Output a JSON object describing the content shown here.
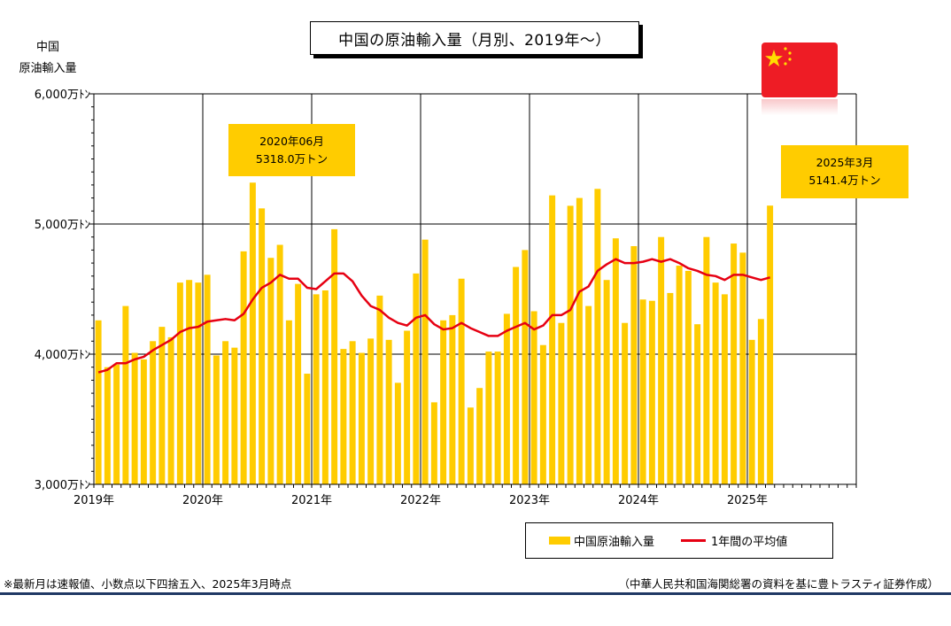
{
  "title": "中国の原油輸入量（月別、2019年～）",
  "y_axis_unit_line1": "中国",
  "y_axis_unit_line2": "原油輸入量",
  "callouts": [
    {
      "line1": "2020年06月",
      "line2": "5318.0万トン"
    },
    {
      "line1": "2025年3月",
      "line2": "5141.4万トン"
    }
  ],
  "legend": {
    "bar_label": "中国原油輸入量",
    "line_label": "1年間の平均値"
  },
  "footnote_left": "※最新月は速報値、小数点以下四捨五入、2025年3月時点",
  "footnote_right": "（中華人民共和国海関総署の資料を基に豊トラスティ証券作成）",
  "colors": {
    "bar": "#ffcc00",
    "line": "#e60012",
    "callout": "#ffcc00",
    "flag_red": "#ee1c25",
    "flag_star": "#ffde00"
  },
  "chart_data": {
    "type": "bar",
    "ylim": [
      3000,
      6000
    ],
    "y_ticks": [
      {
        "value": 3000,
        "label": "3,000万ﾄﾝ"
      },
      {
        "value": 4000,
        "label": "4,000万ﾄﾝ"
      },
      {
        "value": 5000,
        "label": "5,000万ﾄﾝ"
      },
      {
        "value": 6000,
        "label": "6,000万ﾄﾝ"
      }
    ],
    "x_year_labels": [
      "2019年",
      "2020年",
      "2021年",
      "2022年",
      "2023年",
      "2024年",
      "2025年"
    ],
    "months_shown": 84,
    "series": [
      {
        "name": "中国原油輸入量",
        "kind": "bar",
        "values": [
          4260,
          3900,
          3920,
          4370,
          4010,
          3960,
          4100,
          4210,
          4130,
          4550,
          4570,
          4550,
          4610,
          3990,
          4100,
          4050,
          4790,
          5318,
          5120,
          4740,
          4840,
          4260,
          4540,
          3850,
          4460,
          4490,
          4960,
          4040,
          4100,
          4010,
          4120,
          4450,
          4110,
          3780,
          4180,
          4620,
          4880,
          3630,
          4260,
          4300,
          4580,
          3590,
          3740,
          4020,
          4020,
          4310,
          4670,
          4800,
          4330,
          4070,
          5220,
          4240,
          5140,
          5200,
          4370,
          5270,
          4570,
          4890,
          4240,
          4830,
          4420,
          4410,
          4900,
          4470,
          4680,
          4640,
          4230,
          4900,
          4550,
          4460,
          4850,
          4780,
          4110,
          4270,
          5141.4
        ]
      },
      {
        "name": "1年間の平均値",
        "kind": "line",
        "values": [
          3860,
          3880,
          3930,
          3930,
          3960,
          3980,
          4030,
          4070,
          4110,
          4170,
          4200,
          4210,
          4250,
          4260,
          4270,
          4260,
          4310,
          4420,
          4510,
          4550,
          4610,
          4580,
          4580,
          4510,
          4500,
          4560,
          4620,
          4620,
          4560,
          4450,
          4370,
          4340,
          4280,
          4240,
          4220,
          4280,
          4300,
          4230,
          4190,
          4200,
          4240,
          4200,
          4170,
          4140,
          4140,
          4180,
          4210,
          4240,
          4190,
          4220,
          4300,
          4300,
          4340,
          4480,
          4520,
          4640,
          4690,
          4730,
          4700,
          4700,
          4710,
          4730,
          4710,
          4730,
          4700,
          4660,
          4640,
          4610,
          4600,
          4570,
          4610,
          4610,
          4590,
          4570,
          4590
        ]
      }
    ]
  }
}
